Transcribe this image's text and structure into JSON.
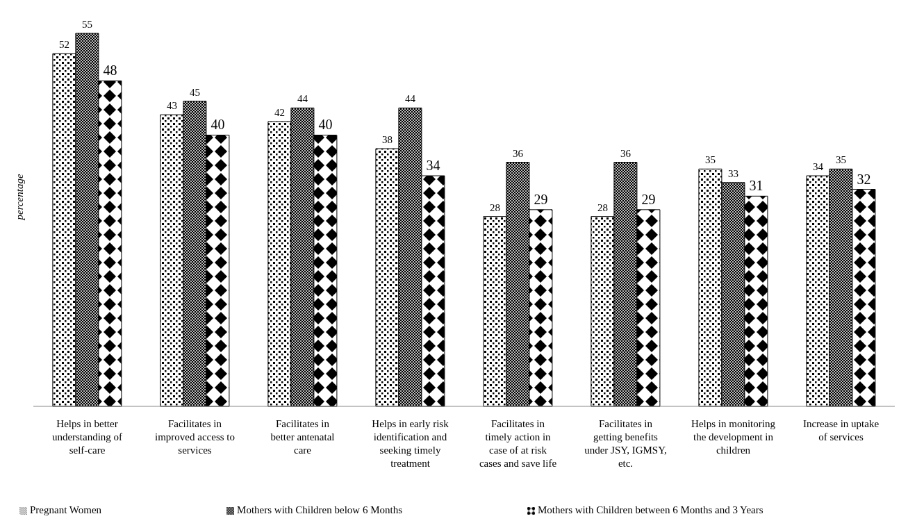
{
  "chart_data": {
    "type": "bar",
    "ylabel": "percentage",
    "categories": [
      "Helps in better understanding of self-care",
      "Facilitates in improved access to services",
      "Facilitates in better antenatal care",
      "Helps in early risk identification and seeking timely treatment",
      "Facilitates in timely action in case of at risk cases and save life",
      "Facilitates in getting benefits under JSY, IGMSY, etc.",
      "Helps in monitoring the development in children",
      "Increase in uptake of services"
    ],
    "series": [
      {
        "name": "Pregnant Women",
        "color": "#000000",
        "values": [
          52,
          43,
          42,
          38,
          28,
          28,
          35,
          34
        ]
      },
      {
        "name": "Mothers with Children below 6 Months",
        "color": "#000000",
        "values": [
          55,
          45,
          44,
          44,
          36,
          36,
          33,
          35
        ]
      },
      {
        "name": "Mothers with Children between 6 Months and 3 Years",
        "color": "#000000",
        "values": [
          48,
          40,
          40,
          34,
          29,
          29,
          31,
          32
        ]
      }
    ],
    "data_labels": true,
    "grid": false,
    "legend": "bottom"
  }
}
